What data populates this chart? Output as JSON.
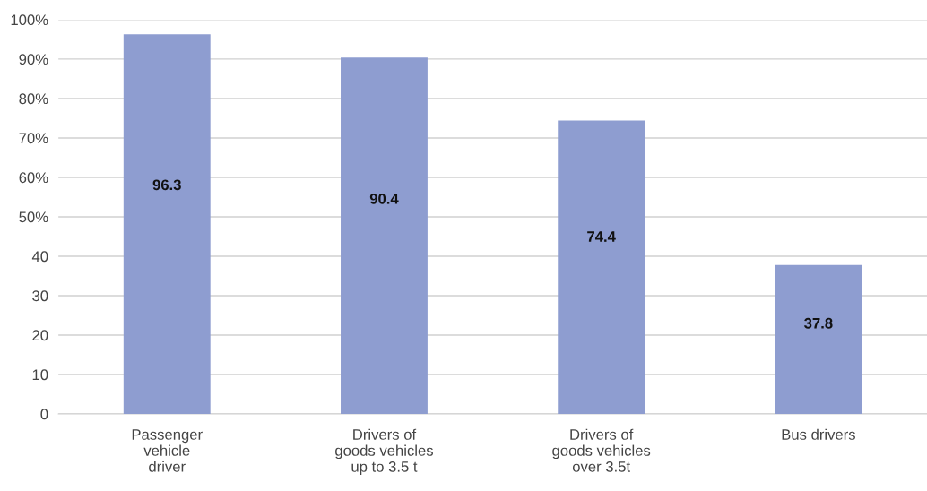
{
  "chart_data": {
    "type": "bar",
    "categories": [
      "Passenger\nvehicle\ndriver",
      "Drivers of\ngoods vehicles\nup to 3.5 t",
      "Drivers of\ngoods vehicles\nover 3.5t",
      "Bus drivers"
    ],
    "values": [
      96.3,
      90.4,
      74.4,
      37.8
    ],
    "color": "#8e9dd0",
    "data_labels": true,
    "ylim": [
      0,
      100
    ],
    "yticks": [
      {
        "value": 0,
        "label": "0"
      },
      {
        "value": 10,
        "label": "10"
      },
      {
        "value": 20,
        "label": "20"
      },
      {
        "value": 30,
        "label": "30"
      },
      {
        "value": 40,
        "label": "40"
      },
      {
        "value": 50,
        "label": "50%"
      },
      {
        "value": 60,
        "label": "60%"
      },
      {
        "value": 70,
        "label": "70%"
      },
      {
        "value": 80,
        "label": "80%"
      },
      {
        "value": 90,
        "label": "90%"
      },
      {
        "value": 100,
        "label": "100%"
      }
    ],
    "grid": "y"
  }
}
